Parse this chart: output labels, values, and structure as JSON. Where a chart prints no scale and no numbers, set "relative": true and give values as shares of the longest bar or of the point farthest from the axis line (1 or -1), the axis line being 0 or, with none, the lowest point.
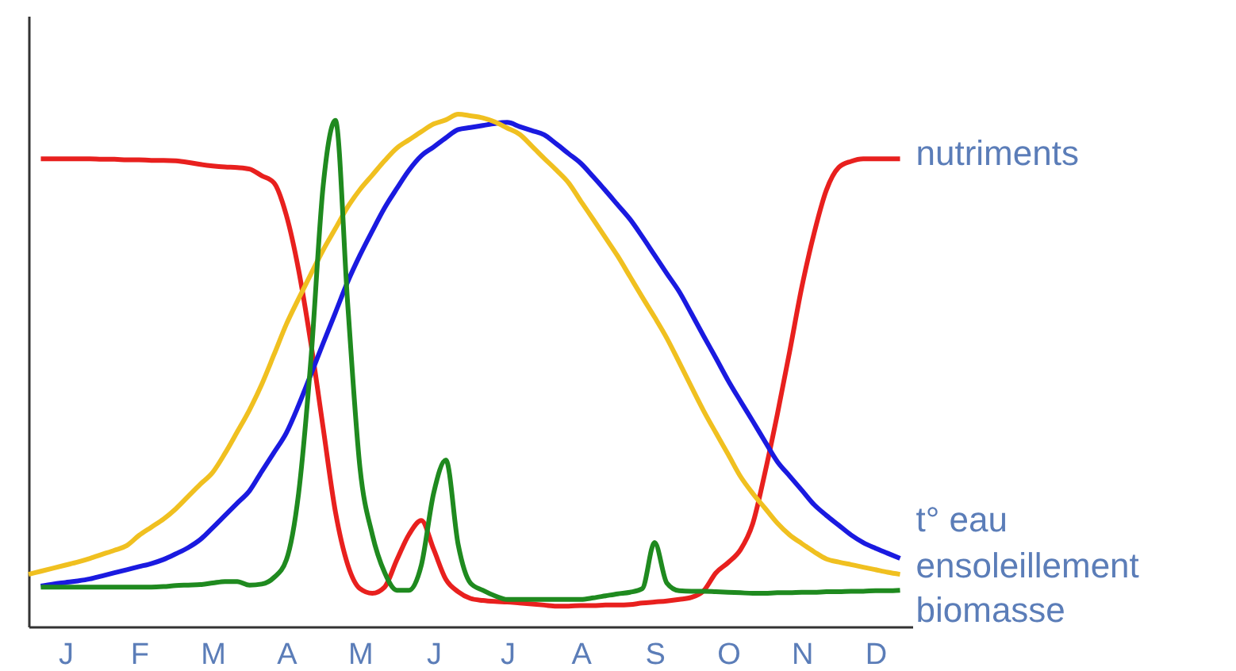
{
  "chart_data": {
    "type": "line",
    "relative": true,
    "grid": false,
    "legend": false,
    "marker": "none",
    "line_style": "solid",
    "categories": [
      null,
      null,
      null,
      "J",
      null,
      null,
      null,
      null,
      null,
      "F",
      null,
      null,
      null,
      null,
      null,
      "M",
      null,
      null,
      null,
      null,
      null,
      "A",
      null,
      null,
      null,
      null,
      null,
      "M",
      null,
      null,
      null,
      null,
      null,
      "J",
      null,
      null,
      null,
      null,
      null,
      "J",
      null,
      null,
      null,
      null,
      null,
      "A",
      null,
      null,
      null,
      null,
      null,
      "S",
      null,
      null,
      null,
      null,
      null,
      "O",
      null,
      null,
      null,
      null,
      null,
      "N",
      null,
      null,
      null,
      null,
      null,
      "D",
      null,
      null,
      null
    ],
    "series": [
      {
        "name": "nutriments",
        "color": "#e8201e",
        "values": [
          null,
          0.913,
          0.913,
          0.913,
          0.913,
          0.913,
          0.912,
          0.912,
          0.911,
          0.911,
          0.91,
          0.91,
          0.909,
          0.906,
          0.902,
          0.899,
          0.897,
          0.896,
          0.893,
          0.88,
          0.866,
          0.803,
          0.696,
          0.553,
          0.388,
          0.224,
          0.121,
          0.074,
          0.065,
          0.077,
          0.13,
          0.18,
          0.207,
          0.151,
          0.092,
          0.068,
          0.055,
          0.051,
          0.049,
          0.048,
          0.046,
          0.044,
          0.042,
          0.04,
          0.04,
          0.041,
          0.041,
          0.042,
          0.042,
          0.043,
          0.046,
          0.048,
          0.05,
          0.053,
          0.057,
          0.07,
          0.105,
          0.125,
          0.15,
          0.201,
          0.301,
          0.414,
          0.536,
          0.663,
          0.768,
          0.852,
          0.896,
          0.908,
          0.913,
          0.913,
          0.913,
          0.913,
          null
        ]
      },
      {
        "name": "t° eau",
        "color": "#1a1ae0",
        "values": [
          null,
          0.079,
          0.083,
          0.086,
          0.089,
          0.093,
          0.099,
          0.105,
          0.111,
          0.117,
          0.123,
          0.131,
          0.142,
          0.154,
          0.17,
          0.193,
          0.217,
          0.241,
          0.265,
          0.303,
          0.34,
          0.378,
          0.432,
          0.492,
          0.553,
          0.613,
          0.673,
          0.725,
          0.772,
          0.817,
          0.855,
          0.891,
          0.919,
          0.936,
          0.954,
          0.97,
          0.974,
          0.978,
          0.982,
          0.984,
          0.976,
          0.968,
          0.96,
          0.942,
          0.923,
          0.904,
          0.878,
          0.851,
          0.823,
          0.795,
          0.761,
          0.725,
          0.689,
          0.654,
          0.611,
          0.567,
          0.524,
          0.48,
          0.44,
          0.401,
          0.361,
          0.322,
          0.294,
          0.266,
          0.238,
          0.217,
          0.198,
          0.179,
          0.164,
          0.153,
          0.143,
          0.133,
          null
        ]
      },
      {
        "name": "ensoleillement",
        "color": "#f0c020",
        "values": [
          0.102,
          0.108,
          0.114,
          0.12,
          0.126,
          0.133,
          0.141,
          0.149,
          0.158,
          0.178,
          0.194,
          0.21,
          0.23,
          0.254,
          0.278,
          0.301,
          0.338,
          0.38,
          0.423,
          0.473,
          0.531,
          0.59,
          0.64,
          0.688,
          0.735,
          0.777,
          0.819,
          0.853,
          0.881,
          0.909,
          0.934,
          0.95,
          0.966,
          0.981,
          0.989,
          1,
          0.997,
          0.993,
          0.985,
          0.973,
          0.961,
          0.938,
          0.914,
          0.891,
          0.866,
          0.83,
          0.795,
          0.759,
          0.723,
          0.683,
          0.643,
          0.604,
          0.563,
          0.516,
          0.468,
          0.421,
          0.378,
          0.336,
          0.293,
          0.26,
          0.231,
          0.202,
          0.179,
          0.162,
          0.146,
          0.132,
          0.126,
          0.121,
          0.116,
          0.111,
          0.106,
          0.102,
          null
        ]
      },
      {
        "name": "biomasse",
        "color": "#1f8a1f",
        "values": [
          null,
          0.077,
          0.077,
          0.077,
          0.077,
          0.077,
          0.077,
          0.077,
          0.077,
          0.077,
          0.077,
          0.078,
          0.08,
          0.081,
          0.082,
          0.085,
          0.088,
          0.088,
          0.081,
          0.083,
          0.096,
          0.13,
          0.26,
          0.52,
          0.86,
          0.988,
          0.63,
          0.31,
          0.18,
          0.106,
          0.071,
          0.071,
          0.12,
          0.26,
          0.325,
          0.16,
          0.085,
          0.071,
          0.06,
          0.053,
          0.053,
          0.053,
          0.053,
          0.053,
          0.053,
          0.053,
          0.056,
          0.06,
          0.064,
          0.067,
          0.074,
          0.164,
          0.085,
          0.07,
          0.069,
          0.069,
          0.068,
          0.067,
          0.066,
          0.065,
          0.065,
          0.066,
          0.066,
          0.067,
          0.067,
          0.068,
          0.068,
          0.069,
          0.069,
          0.07,
          0.07,
          0.071,
          null
        ]
      }
    ]
  }
}
